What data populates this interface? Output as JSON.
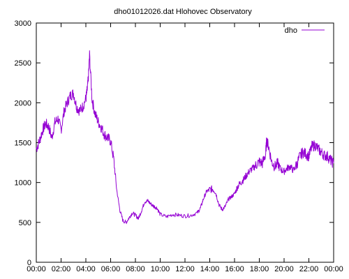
{
  "chart_data": {
    "type": "line",
    "title": "dho01012026.dat Hlohovec Observatory",
    "xlabel": "",
    "ylabel": "",
    "x_ticks": [
      "00:00",
      "02:00",
      "04:00",
      "06:00",
      "08:00",
      "10:00",
      "12:00",
      "14:00",
      "16:00",
      "18:00",
      "20:00",
      "22:00",
      "00:00"
    ],
    "y_ticks": [
      "0",
      "500",
      "1000",
      "1500",
      "2000",
      "2500",
      "3000"
    ],
    "xlim": [
      0,
      24
    ],
    "ylim": [
      0,
      3000
    ],
    "grid": false,
    "legend_position": "top-right",
    "series": [
      {
        "name": "dho",
        "color": "#9400d3",
        "x_hours": [
          0.0,
          0.25,
          0.5,
          0.75,
          1.0,
          1.25,
          1.5,
          1.75,
          2.0,
          2.25,
          2.5,
          2.75,
          3.0,
          3.25,
          3.5,
          3.75,
          4.0,
          4.1,
          4.2,
          4.3,
          4.5,
          4.75,
          5.0,
          5.25,
          5.5,
          5.75,
          6.0,
          6.25,
          6.5,
          6.75,
          7.0,
          7.25,
          7.5,
          7.75,
          8.0,
          8.25,
          8.5,
          8.75,
          9.0,
          9.25,
          9.5,
          9.75,
          10.0,
          10.5,
          11.0,
          11.5,
          12.0,
          12.5,
          13.0,
          13.25,
          13.5,
          13.75,
          14.0,
          14.25,
          14.5,
          14.75,
          15.0,
          15.25,
          15.5,
          15.75,
          16.0,
          16.25,
          16.5,
          16.75,
          17.0,
          17.25,
          17.5,
          17.75,
          18.0,
          18.25,
          18.5,
          18.6,
          18.75,
          19.0,
          19.25,
          19.5,
          19.75,
          20.0,
          20.25,
          20.5,
          20.75,
          21.0,
          21.25,
          21.5,
          21.75,
          22.0,
          22.25,
          22.5,
          22.75,
          23.0,
          23.25,
          23.5,
          23.75,
          24.0
        ],
        "values": [
          1420,
          1520,
          1650,
          1740,
          1700,
          1560,
          1750,
          1800,
          1660,
          1900,
          2000,
          2090,
          2120,
          1950,
          1900,
          1950,
          2050,
          2150,
          2300,
          2600,
          2040,
          1860,
          1760,
          1690,
          1600,
          1560,
          1520,
          1290,
          900,
          650,
          520,
          500,
          560,
          620,
          590,
          550,
          650,
          760,
          770,
          730,
          700,
          680,
          600,
          570,
          600,
          590,
          580,
          590,
          620,
          680,
          800,
          890,
          910,
          920,
          860,
          720,
          660,
          700,
          790,
          820,
          860,
          950,
          1000,
          1040,
          1100,
          1150,
          1180,
          1220,
          1260,
          1240,
          1350,
          1530,
          1450,
          1260,
          1200,
          1240,
          1160,
          1140,
          1180,
          1200,
          1150,
          1220,
          1320,
          1380,
          1360,
          1330,
          1450,
          1470,
          1420,
          1380,
          1340,
          1330,
          1280,
          1240
        ]
      }
    ]
  }
}
